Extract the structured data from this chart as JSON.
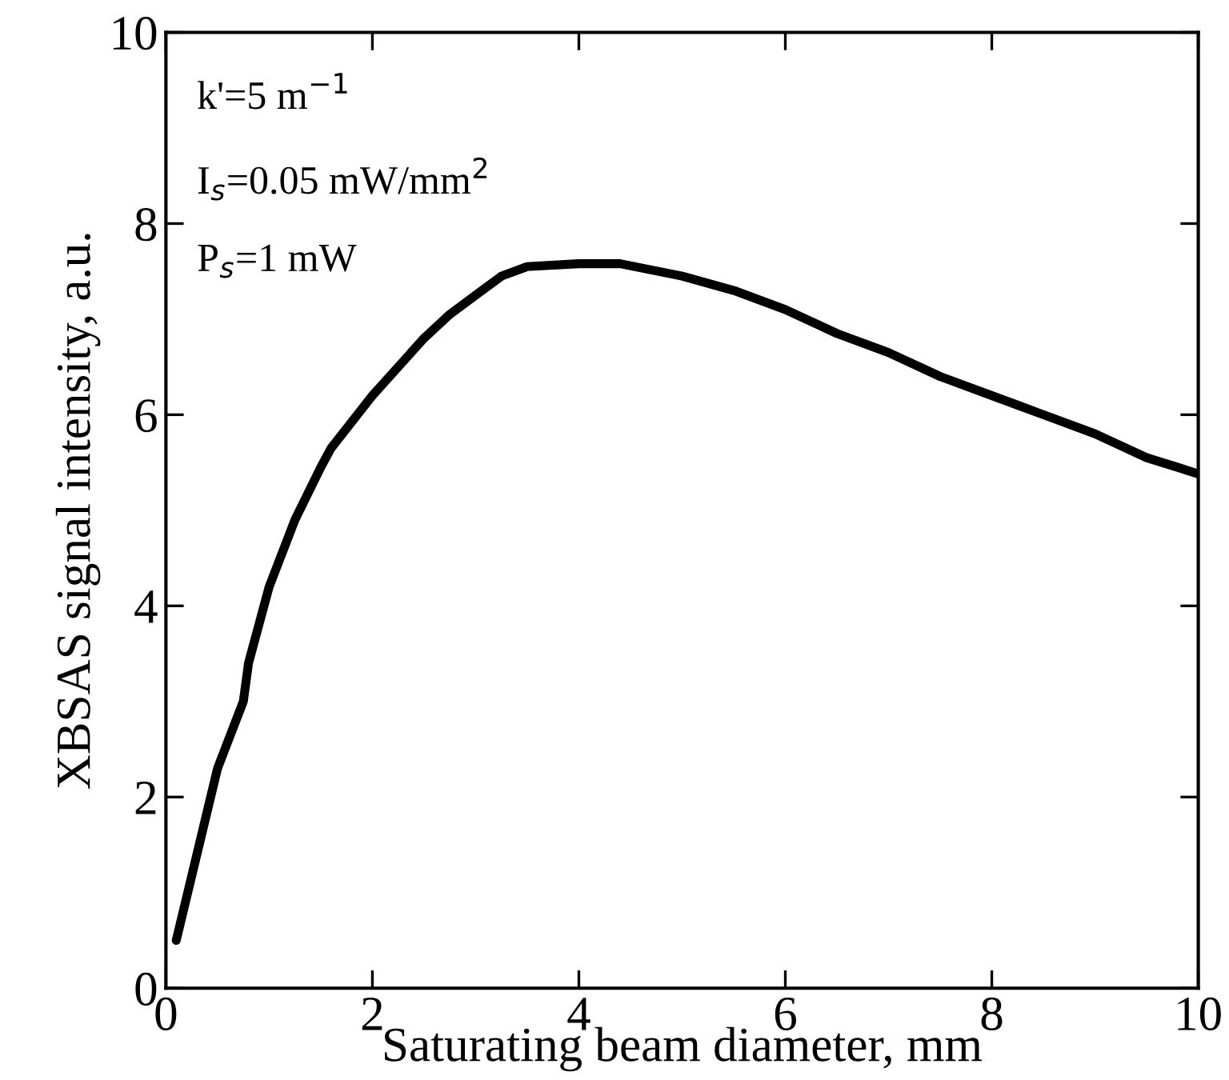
{
  "chart_data": {
    "type": "line",
    "xlabel": "Saturating beam diameter, mm",
    "ylabel": "XBSAS signal intensity, a.u.",
    "x": [
      0.1,
      0.3,
      0.5,
      0.75,
      0.8,
      1.0,
      1.25,
      1.5,
      1.6,
      2.0,
      2.5,
      2.75,
      3.0,
      3.25,
      3.5,
      4.0,
      4.4,
      5.0,
      5.5,
      6.0,
      6.5,
      7.0,
      7.5,
      8.0,
      8.5,
      9.0,
      9.1,
      9.5,
      9.8,
      10.0
    ],
    "series": [
      {
        "color": "#000000",
        "values": [
          0.5,
          1.4,
          2.3,
          3.0,
          3.4,
          4.2,
          4.9,
          5.45,
          5.65,
          6.2,
          6.8,
          7.05,
          7.25,
          7.45,
          7.55,
          7.58,
          7.58,
          7.45,
          7.3,
          7.1,
          6.85,
          6.65,
          6.4,
          6.2,
          6.0,
          5.8,
          5.75,
          5.55,
          5.45,
          5.38
        ]
      }
    ],
    "xlim": [
      0,
      10
    ],
    "ylim": [
      0,
      10
    ],
    "xticks": [
      0,
      2,
      4,
      6,
      8,
      10
    ],
    "yticks": [
      0,
      2,
      4,
      6,
      8,
      10
    ],
    "grid": false,
    "legend": false,
    "marker": "none",
    "line_style": "solid",
    "annotations": [
      "k'=5 m$^{−1}$",
      "I$_{s}$=0.05 mW/mm$^{2}$",
      "P$_{s}$=1 mW"
    ]
  }
}
